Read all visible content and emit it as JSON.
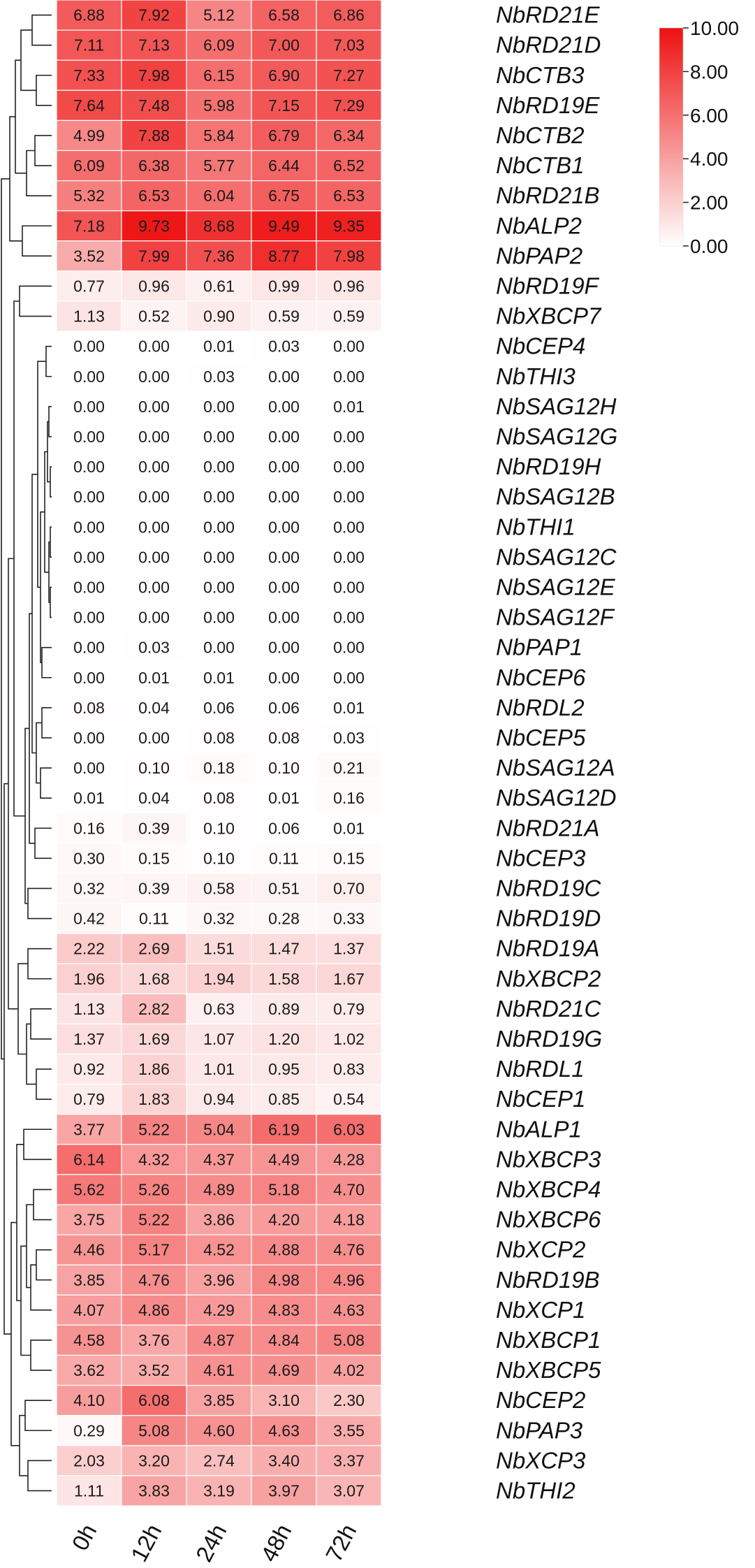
{
  "chart_data": {
    "type": "heatmap",
    "columns": [
      "0h",
      "12h",
      "24h",
      "48h",
      "72h"
    ],
    "rows": [
      {
        "gene": "NbRD21E",
        "values": [
          6.88,
          7.92,
          5.12,
          6.58,
          6.86
        ]
      },
      {
        "gene": "NbRD21D",
        "values": [
          7.11,
          7.13,
          6.09,
          7.0,
          7.03
        ]
      },
      {
        "gene": "NbCTB3",
        "values": [
          7.33,
          7.98,
          6.15,
          6.9,
          7.27
        ]
      },
      {
        "gene": "NbRD19E",
        "values": [
          7.64,
          7.48,
          5.98,
          7.15,
          7.29
        ]
      },
      {
        "gene": "NbCTB2",
        "values": [
          4.99,
          7.88,
          5.84,
          6.79,
          6.34
        ]
      },
      {
        "gene": "NbCTB1",
        "values": [
          6.09,
          6.38,
          5.77,
          6.44,
          6.52
        ]
      },
      {
        "gene": "NbRD21B",
        "values": [
          5.32,
          6.53,
          6.04,
          6.75,
          6.53
        ]
      },
      {
        "gene": "NbALP2",
        "values": [
          7.18,
          9.73,
          8.68,
          9.49,
          9.35
        ]
      },
      {
        "gene": "NbPAP2",
        "values": [
          3.52,
          7.99,
          7.36,
          8.77,
          7.98
        ]
      },
      {
        "gene": "NbRD19F",
        "values": [
          0.77,
          0.96,
          0.61,
          0.99,
          0.96
        ]
      },
      {
        "gene": "NbXBCP7",
        "values": [
          1.13,
          0.52,
          0.9,
          0.59,
          0.59
        ]
      },
      {
        "gene": "NbCEP4",
        "values": [
          0.0,
          0.0,
          0.01,
          0.03,
          0.0
        ]
      },
      {
        "gene": "NbTHI3",
        "values": [
          0.0,
          0.0,
          0.03,
          0.0,
          0.0
        ]
      },
      {
        "gene": "NbSAG12H",
        "values": [
          0.0,
          0.0,
          0.0,
          0.0,
          0.01
        ]
      },
      {
        "gene": "NbSAG12G",
        "values": [
          0.0,
          0.0,
          0.0,
          0.0,
          0.0
        ]
      },
      {
        "gene": "NbRD19H",
        "values": [
          0.0,
          0.0,
          0.0,
          0.0,
          0.0
        ]
      },
      {
        "gene": "NbSAG12B",
        "values": [
          0.0,
          0.0,
          0.0,
          0.0,
          0.0
        ]
      },
      {
        "gene": "NbTHI1",
        "values": [
          0.0,
          0.0,
          0.0,
          0.0,
          0.0
        ]
      },
      {
        "gene": "NbSAG12C",
        "values": [
          0.0,
          0.0,
          0.0,
          0.0,
          0.0
        ]
      },
      {
        "gene": "NbSAG12E",
        "values": [
          0.0,
          0.0,
          0.0,
          0.0,
          0.0
        ]
      },
      {
        "gene": "NbSAG12F",
        "values": [
          0.0,
          0.0,
          0.0,
          0.0,
          0.0
        ]
      },
      {
        "gene": "NbPAP1",
        "values": [
          0.0,
          0.03,
          0.0,
          0.0,
          0.0
        ]
      },
      {
        "gene": "NbCEP6",
        "values": [
          0.0,
          0.01,
          0.01,
          0.0,
          0.0
        ]
      },
      {
        "gene": "NbRDL2",
        "values": [
          0.08,
          0.04,
          0.06,
          0.06,
          0.01
        ]
      },
      {
        "gene": "NbCEP5",
        "values": [
          0.0,
          0.0,
          0.08,
          0.08,
          0.03
        ]
      },
      {
        "gene": "NbSAG12A",
        "values": [
          0.0,
          0.1,
          0.18,
          0.1,
          0.21
        ]
      },
      {
        "gene": "NbSAG12D",
        "values": [
          0.01,
          0.04,
          0.08,
          0.01,
          0.16
        ]
      },
      {
        "gene": "NbRD21A",
        "values": [
          0.16,
          0.39,
          0.1,
          0.06,
          0.01
        ]
      },
      {
        "gene": "NbCEP3",
        "values": [
          0.3,
          0.15,
          0.1,
          0.11,
          0.15
        ]
      },
      {
        "gene": "NbRD19C",
        "values": [
          0.32,
          0.39,
          0.58,
          0.51,
          0.7
        ]
      },
      {
        "gene": "NbRD19D",
        "values": [
          0.42,
          0.11,
          0.32,
          0.28,
          0.33
        ]
      },
      {
        "gene": "NbRD19A",
        "values": [
          2.22,
          2.69,
          1.51,
          1.47,
          1.37
        ]
      },
      {
        "gene": "NbXBCP2",
        "values": [
          1.96,
          1.68,
          1.94,
          1.58,
          1.67
        ]
      },
      {
        "gene": "NbRD21C",
        "values": [
          1.13,
          2.82,
          0.63,
          0.89,
          0.79
        ]
      },
      {
        "gene": "NbRD19G",
        "values": [
          1.37,
          1.69,
          1.07,
          1.2,
          1.02
        ]
      },
      {
        "gene": "NbRDL1",
        "values": [
          0.92,
          1.86,
          1.01,
          0.95,
          0.83
        ]
      },
      {
        "gene": "NbCEP1",
        "values": [
          0.79,
          1.83,
          0.94,
          0.85,
          0.54
        ]
      },
      {
        "gene": "NbALP1",
        "values": [
          3.77,
          5.22,
          5.04,
          6.19,
          6.03
        ]
      },
      {
        "gene": "NbXBCP3",
        "values": [
          6.14,
          4.32,
          4.37,
          4.49,
          4.28
        ]
      },
      {
        "gene": "NbXBCP4",
        "values": [
          5.62,
          5.26,
          4.89,
          5.18,
          4.7
        ]
      },
      {
        "gene": "NbXBCP6",
        "values": [
          3.75,
          5.22,
          3.86,
          4.2,
          4.18
        ]
      },
      {
        "gene": "NbXCP2",
        "values": [
          4.46,
          5.17,
          4.52,
          4.88,
          4.76
        ]
      },
      {
        "gene": "NbRD19B",
        "values": [
          3.85,
          4.76,
          3.96,
          4.98,
          4.96
        ]
      },
      {
        "gene": "NbXCP1",
        "values": [
          4.07,
          4.86,
          4.29,
          4.83,
          4.63
        ]
      },
      {
        "gene": "NbXBCP1",
        "values": [
          4.58,
          3.76,
          4.87,
          4.84,
          5.08
        ]
      },
      {
        "gene": "NbXBCP5",
        "values": [
          3.62,
          3.52,
          4.61,
          4.69,
          4.02
        ]
      },
      {
        "gene": "NbCEP2",
        "values": [
          4.1,
          6.08,
          3.85,
          3.1,
          2.3
        ]
      },
      {
        "gene": "NbPAP3",
        "values": [
          0.29,
          5.08,
          4.6,
          4.63,
          3.55
        ]
      },
      {
        "gene": "NbXCP3",
        "values": [
          2.03,
          3.2,
          2.74,
          3.4,
          3.37
        ]
      },
      {
        "gene": "NbTHI2",
        "values": [
          1.11,
          3.83,
          3.19,
          3.97,
          3.07
        ]
      }
    ],
    "color_scale": {
      "min": 0.0,
      "max": 10.0,
      "low_color": "#ffffff",
      "high_color": "#ee1111",
      "ticks": [
        "0.00",
        "2.00",
        "4.00",
        "6.00",
        "8.00",
        "10.00"
      ]
    },
    "legend_position": "top-right",
    "row_dendrogram": true
  }
}
